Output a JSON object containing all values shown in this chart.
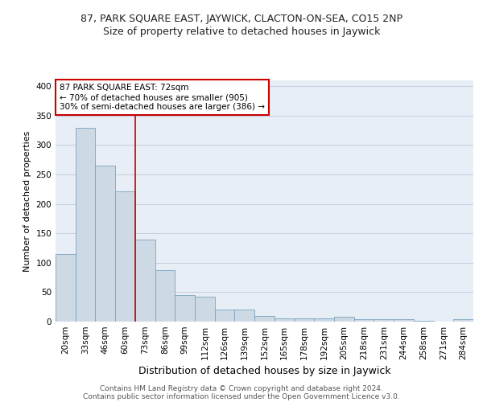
{
  "title_line1": "87, PARK SQUARE EAST, JAYWICK, CLACTON-ON-SEA, CO15 2NP",
  "title_line2": "Size of property relative to detached houses in Jaywick",
  "xlabel": "Distribution of detached houses by size in Jaywick",
  "ylabel": "Number of detached properties",
  "footer_line1": "Contains HM Land Registry data © Crown copyright and database right 2024.",
  "footer_line2": "Contains public sector information licensed under the Open Government Licence v3.0.",
  "categories": [
    "20sqm",
    "33sqm",
    "46sqm",
    "60sqm",
    "73sqm",
    "86sqm",
    "99sqm",
    "112sqm",
    "126sqm",
    "139sqm",
    "152sqm",
    "165sqm",
    "178sqm",
    "192sqm",
    "205sqm",
    "218sqm",
    "231sqm",
    "244sqm",
    "258sqm",
    "271sqm",
    "284sqm"
  ],
  "values": [
    115,
    330,
    265,
    222,
    140,
    88,
    45,
    42,
    20,
    20,
    10,
    6,
    6,
    6,
    8,
    4,
    4,
    4,
    1,
    0,
    4
  ],
  "bar_color": "#cdd9e5",
  "bar_edge_color": "#7ba3be",
  "vline_color": "#cc0000",
  "annotation_text_line1": "87 PARK SQUARE EAST: 72sqm",
  "annotation_text_line2": "← 70% of detached houses are smaller (905)",
  "annotation_text_line3": "30% of semi-detached houses are larger (386) →",
  "annotation_box_facecolor": "white",
  "annotation_box_edgecolor": "#cc0000",
  "ylim": [
    0,
    410
  ],
  "yticks": [
    0,
    50,
    100,
    150,
    200,
    250,
    300,
    350,
    400
  ],
  "grid_color": "#c5cfe0",
  "plot_bg_color": "#e8eef6",
  "fig_bg_color": "#ffffff",
  "title1_fontsize": 9,
  "title2_fontsize": 9,
  "ylabel_fontsize": 8,
  "xlabel_fontsize": 9,
  "tick_fontsize": 7.5,
  "ann_fontsize": 7.5,
  "footer_fontsize": 6.5
}
